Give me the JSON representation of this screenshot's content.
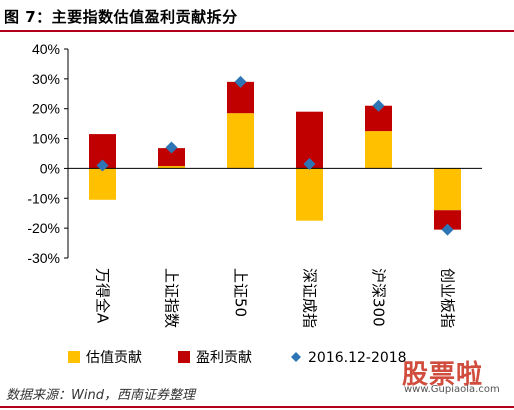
{
  "figure": {
    "title": "图 7：主要指数估值盈利贡献拆分",
    "source": "数据来源：Wind，西南证券整理"
  },
  "watermark": {
    "brand": "股票啦",
    "url": "www.Gupiaola.com"
  },
  "colors": {
    "valuation": "#FFC000",
    "earnings": "#C00000",
    "total": "#2E75B6",
    "rule": "#b3001b"
  },
  "chart_data": {
    "type": "bar",
    "stacked": true,
    "categories": [
      "万得全A",
      "上证指数",
      "上证50",
      "深证成指",
      "沪深300",
      "创业板指"
    ],
    "series": [
      {
        "name": "估值贡献",
        "kind": "bar",
        "values": [
          -10.5,
          0.8,
          18.5,
          -17.5,
          12.5,
          -14.0
        ]
      },
      {
        "name": "盈利贡献",
        "kind": "bar",
        "values": [
          11.5,
          6.0,
          10.5,
          19.0,
          8.5,
          -6.5
        ]
      },
      {
        "name": "2016.12-2018",
        "kind": "marker",
        "values": [
          1.0,
          7.0,
          29.0,
          1.5,
          21.0,
          -20.5
        ]
      }
    ],
    "y_ticks": [
      "40%",
      "30%",
      "20%",
      "10%",
      "0%",
      "-10%",
      "-20%",
      "-30%"
    ],
    "ylim": [
      -30,
      40
    ],
    "grid": false,
    "legend": "bottom"
  }
}
